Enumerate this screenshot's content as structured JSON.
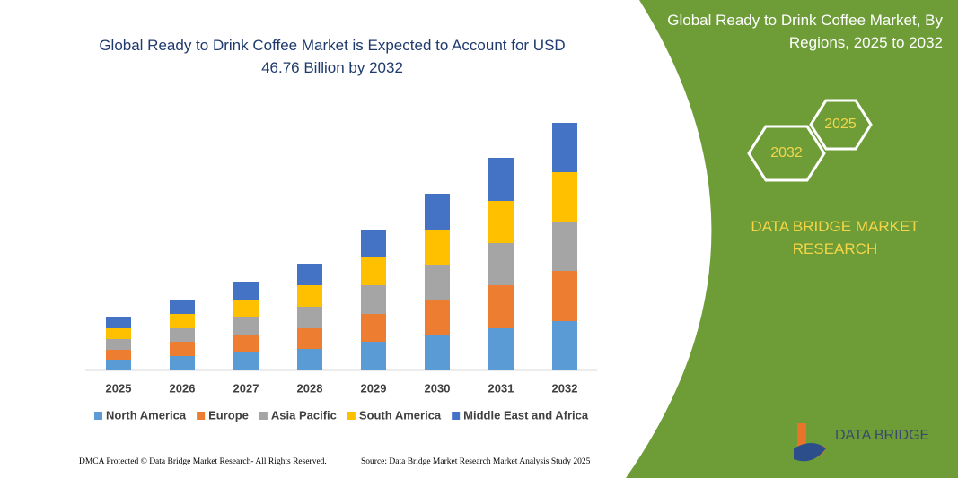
{
  "chart_data": {
    "type": "stacked-bar",
    "title": "Global Ready to Drink Coffee Market is Expected to Account for USD 46.76 Billion by 2032",
    "categories": [
      "2025",
      "2026",
      "2027",
      "2028",
      "2029",
      "2030",
      "2031",
      "2032"
    ],
    "series": [
      {
        "name": "North America",
        "color": "#5b9bd5",
        "values": [
          12,
          16,
          20,
          24,
          32,
          39,
          47,
          55
        ]
      },
      {
        "name": "Europe",
        "color": "#ed7d31",
        "values": [
          11,
          16,
          19,
          23,
          31,
          40,
          48,
          56
        ]
      },
      {
        "name": "Asia Pacific",
        "color": "#a5a5a5",
        "values": [
          12,
          15,
          20,
          24,
          32,
          39,
          47,
          55
        ]
      },
      {
        "name": "South America",
        "color": "#ffc000",
        "values": [
          12,
          16,
          20,
          24,
          31,
          39,
          47,
          55
        ]
      },
      {
        "name": "Middle East and Africa",
        "color": "#4472c4",
        "values": [
          12,
          15,
          20,
          24,
          31,
          40,
          48,
          55
        ]
      }
    ]
  },
  "panel": {
    "title": "Global Ready to Drink Coffee Market, By Regions, 2025 to 2032",
    "hex_start": "2025",
    "hex_end": "2032",
    "brand": "DATA BRIDGE MARKET RESEARCH"
  },
  "logo": "DATA BRIDGE",
  "footer": {
    "left": "DMCA Protected © Data Bridge Market Research- All Rights Reserved.",
    "right": "Source: Data Bridge Market Research  Market Analysis Study 2025"
  }
}
